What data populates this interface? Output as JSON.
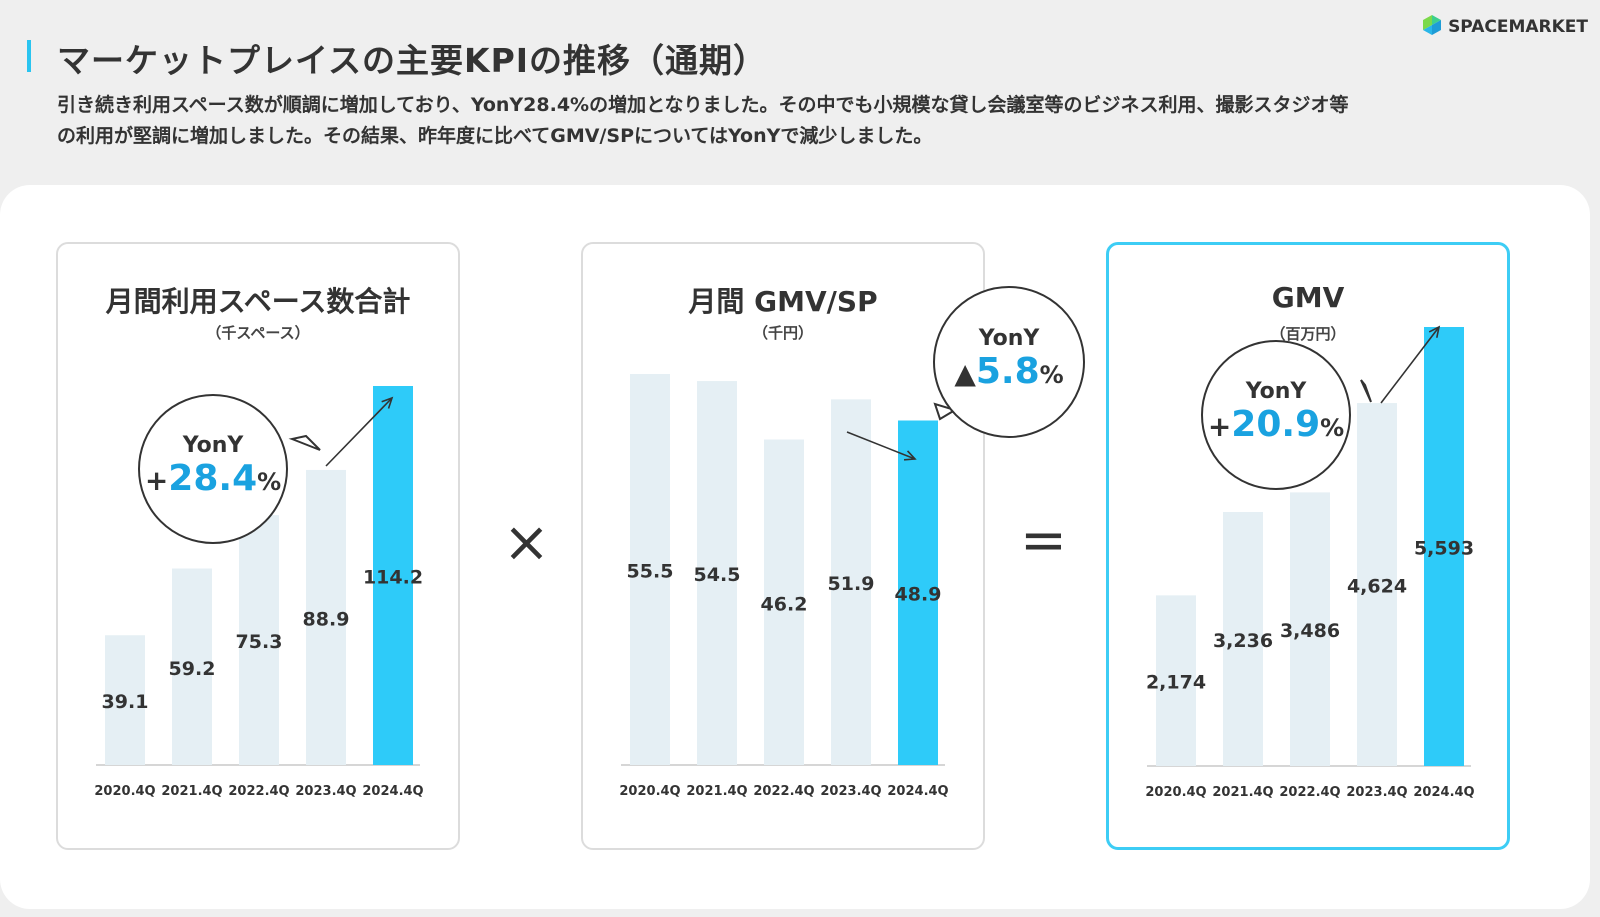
{
  "header": {
    "title": "マーケットプレイスの主要KPIの推移（通期）",
    "description_lines": [
      "引き続き利用スペース数が順調に増加しており、YonY28.4%の増加となりました。その中でも小規模な貸し会議室等のビジネス利用、撮影スタジオ等",
      "の利用が堅調に増加しました。その結果、昨年度に比べてGMV/SPについてはYonYで減少しました。"
    ],
    "logo_text": "SPACEMARKET",
    "logo_icon": "spacemarket-logo-icon"
  },
  "operators": {
    "multiply": "×",
    "equals": "="
  },
  "colors": {
    "accent": "#2ecbf9",
    "bar": "#e5eff4",
    "growth_text": "#1aa2e0"
  },
  "chart_data": [
    {
      "type": "bar",
      "title": "月間利用スペース数合計",
      "unit": "（千スペース）",
      "categories": [
        "2020.4Q",
        "2021.4Q",
        "2022.4Q",
        "2023.4Q",
        "2024.4Q"
      ],
      "values": [
        39.1,
        59.2,
        75.3,
        88.9,
        114.2
      ],
      "value_labels": [
        "39.1",
        "59.2",
        "75.3",
        "88.9",
        "114.2"
      ],
      "highlight_index": 4,
      "ylim": [
        0,
        114.2
      ],
      "yony": {
        "label": "YonY",
        "sign": "+",
        "number": "28.4",
        "percent": "%"
      }
    },
    {
      "type": "bar",
      "title": "月間 GMV/SP",
      "unit": "（千円）",
      "categories": [
        "2020.4Q",
        "2021.4Q",
        "2022.4Q",
        "2023.4Q",
        "2024.4Q"
      ],
      "values": [
        55.5,
        54.5,
        46.2,
        51.9,
        48.9
      ],
      "value_labels": [
        "55.5",
        "54.5",
        "46.2",
        "51.9",
        "48.9"
      ],
      "highlight_index": 4,
      "ylim": [
        0,
        55.5
      ],
      "yony": {
        "label": "YonY",
        "sign": "▲",
        "number": "5.8",
        "percent": "%"
      }
    },
    {
      "type": "bar",
      "title": "GMV",
      "unit": "（百万円）",
      "categories": [
        "2020.4Q",
        "2021.4Q",
        "2022.4Q",
        "2023.4Q",
        "2024.4Q"
      ],
      "values": [
        2174,
        3236,
        3486,
        4624,
        5593
      ],
      "value_labels": [
        "2,174",
        "3,236",
        "3,486",
        "4,624",
        "5,593"
      ],
      "highlight_index": 4,
      "ylim": [
        0,
        5593
      ],
      "yony": {
        "label": "YonY",
        "sign": "+",
        "number": "20.9",
        "percent": "%"
      }
    }
  ]
}
